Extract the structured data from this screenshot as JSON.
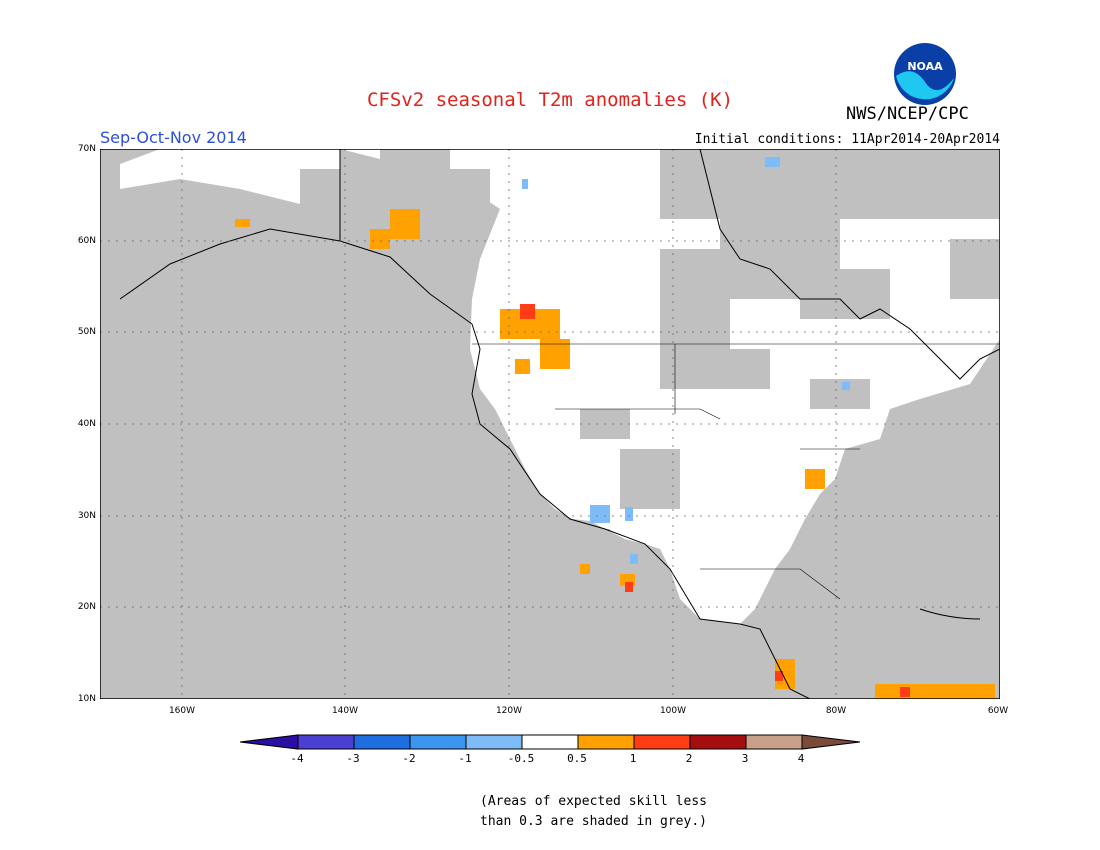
{
  "title": "CFSv2 seasonal T2m anomalies (K)",
  "season": "Sep-Oct-Nov 2014",
  "initial_conditions": "Initial conditions: 11Apr2014-20Apr2014",
  "agency": "NWS/NCEP/CPC",
  "logo_text": "NOAA",
  "lat_labels": [
    "70N",
    "60N",
    "50N",
    "40N",
    "30N",
    "20N",
    "10N"
  ],
  "lon_labels": [
    "160W",
    "140W",
    "120W",
    "100W",
    "80W",
    "60W"
  ],
  "colorbar": {
    "labels": [
      "-4",
      "-3",
      "-2",
      "-1",
      "-0.5",
      "0.5",
      "1",
      "2",
      "3",
      "4"
    ],
    "colors": [
      "#2b0fa3",
      "#4a3fd0",
      "#1f6ee0",
      "#3b96f0",
      "#7dbcf7",
      "#ffffff",
      "#ffa100",
      "#ff3c14",
      "#a50e0e",
      "#c9a08a",
      "#7a4a3a"
    ]
  },
  "skill_note_line1": "(Areas of expected skill less",
  "skill_note_line2": "than 0.3 are shaded in grey.)",
  "colors": {
    "grey_low_skill": "#c0c0c0",
    "ocean_land_background": "#ffffff",
    "title": "#e0221c",
    "season": "#2d4fd6"
  }
}
